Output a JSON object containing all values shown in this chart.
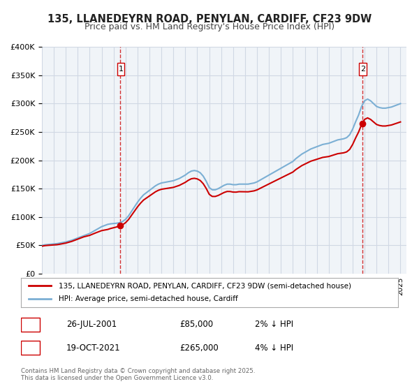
{
  "title_line1": "135, LLANEDEYRN ROAD, PENYLAN, CARDIFF, CF23 9DW",
  "title_line2": "Price paid vs. HM Land Registry's House Price Index (HPI)",
  "xlabel": "",
  "ylabel": "",
  "ylim": [
    0,
    400000
  ],
  "yticks": [
    0,
    50000,
    100000,
    150000,
    200000,
    250000,
    300000,
    350000,
    400000
  ],
  "ytick_labels": [
    "£0",
    "£50K",
    "£100K",
    "£150K",
    "£200K",
    "£250K",
    "£300K",
    "£350K",
    "£400K"
  ],
  "x_start": 1995,
  "x_end": 2025.5,
  "xticks": [
    1995,
    1996,
    1997,
    1998,
    1999,
    2000,
    2001,
    2002,
    2003,
    2004,
    2005,
    2006,
    2007,
    2008,
    2009,
    2010,
    2011,
    2012,
    2013,
    2014,
    2015,
    2016,
    2017,
    2018,
    2019,
    2020,
    2021,
    2022,
    2023,
    2024,
    2025
  ],
  "hpi_color": "#7bafd4",
  "price_color": "#cc0000",
  "vline_color": "#cc0000",
  "grid_color": "#d0d8e4",
  "bg_color": "#f0f4f8",
  "plot_bg_color": "#f0f4f8",
  "marker1_x": 2001.57,
  "marker1_y": 85000,
  "marker2_x": 2021.8,
  "marker2_y": 265000,
  "legend_line1": "135, LLANEDEYRN ROAD, PENYLAN, CARDIFF, CF23 9DW (semi-detached house)",
  "legend_line2": "HPI: Average price, semi-detached house, Cardiff",
  "annotation1_label": "1",
  "annotation1_date": "26-JUL-2001",
  "annotation1_price": "£85,000",
  "annotation1_hpi": "2% ↓ HPI",
  "annotation2_label": "2",
  "annotation2_date": "19-OCT-2021",
  "annotation2_price": "£265,000",
  "annotation2_hpi": "4% ↓ HPI",
  "footer": "Contains HM Land Registry data © Crown copyright and database right 2025.\nThis data is licensed under the Open Government Licence v3.0.",
  "hpi_data_x": [
    1995.0,
    1995.25,
    1995.5,
    1995.75,
    1996.0,
    1996.25,
    1996.5,
    1996.75,
    1997.0,
    1997.25,
    1997.5,
    1997.75,
    1998.0,
    1998.25,
    1998.5,
    1998.75,
    1999.0,
    1999.25,
    1999.5,
    1999.75,
    2000.0,
    2000.25,
    2000.5,
    2000.75,
    2001.0,
    2001.25,
    2001.5,
    2001.75,
    2002.0,
    2002.25,
    2002.5,
    2002.75,
    2003.0,
    2003.25,
    2003.5,
    2003.75,
    2004.0,
    2004.25,
    2004.5,
    2004.75,
    2005.0,
    2005.25,
    2005.5,
    2005.75,
    2006.0,
    2006.25,
    2006.5,
    2006.75,
    2007.0,
    2007.25,
    2007.5,
    2007.75,
    2008.0,
    2008.25,
    2008.5,
    2008.75,
    2009.0,
    2009.25,
    2009.5,
    2009.75,
    2010.0,
    2010.25,
    2010.5,
    2010.75,
    2011.0,
    2011.25,
    2011.5,
    2011.75,
    2012.0,
    2012.25,
    2012.5,
    2012.75,
    2013.0,
    2013.25,
    2013.5,
    2013.75,
    2014.0,
    2014.25,
    2014.5,
    2014.75,
    2015.0,
    2015.25,
    2015.5,
    2015.75,
    2016.0,
    2016.25,
    2016.5,
    2016.75,
    2017.0,
    2017.25,
    2017.5,
    2017.75,
    2018.0,
    2018.25,
    2018.5,
    2018.75,
    2019.0,
    2019.25,
    2019.5,
    2019.75,
    2020.0,
    2020.25,
    2020.5,
    2020.75,
    2021.0,
    2021.25,
    2021.5,
    2021.75,
    2022.0,
    2022.25,
    2022.5,
    2022.75,
    2023.0,
    2023.25,
    2023.5,
    2023.75,
    2024.0,
    2024.25,
    2024.5,
    2024.75,
    2025.0
  ],
  "hpi_data_y": [
    50000,
    51000,
    51500,
    52000,
    52500,
    53000,
    54000,
    55000,
    56000,
    57500,
    59000,
    61000,
    63000,
    65000,
    67000,
    69000,
    71000,
    74000,
    77000,
    80000,
    83000,
    85000,
    87000,
    88000,
    88500,
    89000,
    90000,
    92000,
    96000,
    102000,
    110000,
    118000,
    126000,
    133000,
    139000,
    143000,
    147000,
    151000,
    155000,
    158000,
    160000,
    161000,
    162000,
    163000,
    164000,
    166000,
    168000,
    171000,
    174000,
    178000,
    181000,
    182000,
    181000,
    178000,
    172000,
    163000,
    152000,
    148000,
    148000,
    150000,
    153000,
    156000,
    158000,
    158000,
    157000,
    157000,
    158000,
    158000,
    158000,
    158000,
    159000,
    160000,
    162000,
    165000,
    168000,
    171000,
    174000,
    177000,
    180000,
    183000,
    186000,
    189000,
    192000,
    195000,
    198000,
    203000,
    207000,
    211000,
    214000,
    217000,
    220000,
    222000,
    224000,
    226000,
    228000,
    229000,
    230000,
    232000,
    234000,
    236000,
    237000,
    238000,
    240000,
    245000,
    255000,
    268000,
    280000,
    295000,
    305000,
    308000,
    305000,
    300000,
    295000,
    293000,
    292000,
    292000,
    293000,
    294000,
    296000,
    298000,
    300000
  ],
  "price_data_x": [
    1995.5,
    1996.5,
    1997.5,
    1998.5,
    1999.5,
    2000.5,
    2001.57,
    2021.8
  ],
  "price_data_y": [
    50000,
    52000,
    57000,
    65000,
    72000,
    78000,
    85000,
    265000
  ]
}
